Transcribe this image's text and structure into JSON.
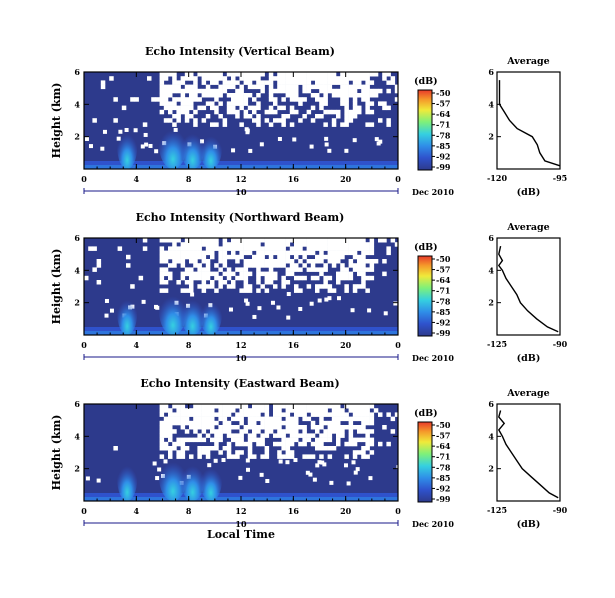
{
  "chart_data": [
    {
      "type": "heatmap",
      "title": "Echo Intensity (Vertical Beam)",
      "ylabel": "Height (km)",
      "y_ticks": [
        "2",
        "4",
        "6"
      ],
      "ylim": [
        0,
        6
      ],
      "x_ticks": [
        "0",
        "4",
        "8",
        "12",
        "16",
        "20",
        "0"
      ],
      "xlim": [
        0,
        24
      ],
      "x_xaxis_xlabel": "",
      "date_day": "10",
      "date_label": "Dec 2010",
      "colorbar": {
        "unit": "(dB)",
        "ticks": [
          "-50",
          "-57",
          "-64",
          "-71",
          "-78",
          "-85",
          "-92",
          "-99"
        ]
      },
      "average": {
        "title": "Average",
        "xlabel": "(dB)",
        "x_ticks": [
          "-120",
          "-95"
        ],
        "xlim": [
          -120,
          -95
        ],
        "profile": [
          [
            0.2,
            -95
          ],
          [
            0.5,
            -101
          ],
          [
            1.0,
            -103
          ],
          [
            1.5,
            -104
          ],
          [
            2.0,
            -106
          ],
          [
            2.5,
            -112
          ],
          [
            3.0,
            -115
          ],
          [
            3.5,
            -117
          ],
          [
            4.0,
            -119
          ],
          [
            4.5,
            -119
          ],
          [
            5.0,
            -119
          ],
          [
            5.5,
            -119
          ]
        ]
      }
    },
    {
      "type": "heatmap",
      "title": "Echo Intensity (Northward Beam)",
      "ylabel": "Height (km)",
      "y_ticks": [
        "2",
        "4",
        "6"
      ],
      "ylim": [
        0,
        6
      ],
      "x_ticks": [
        "0",
        "4",
        "8",
        "12",
        "16",
        "20",
        "0"
      ],
      "xlim": [
        0,
        24
      ],
      "date_day": "10",
      "date_label": "Dec 2010",
      "colorbar": {
        "unit": "(dB)",
        "ticks": [
          "-50",
          "-57",
          "-64",
          "-71",
          "-78",
          "-85",
          "-92",
          "-99"
        ]
      },
      "average": {
        "title": "Average",
        "xlabel": "(dB)",
        "x_ticks": [
          "-125",
          "-90"
        ],
        "xlim": [
          -125,
          -90
        ],
        "profile": [
          [
            0.2,
            -91
          ],
          [
            0.5,
            -97
          ],
          [
            1.0,
            -103
          ],
          [
            1.5,
            -108
          ],
          [
            2.0,
            -112
          ],
          [
            2.5,
            -114
          ],
          [
            3.0,
            -117
          ],
          [
            3.5,
            -120
          ],
          [
            4.0,
            -122
          ],
          [
            4.3,
            -124
          ],
          [
            4.6,
            -122
          ],
          [
            5.0,
            -124
          ],
          [
            5.5,
            -123
          ]
        ]
      }
    },
    {
      "type": "heatmap",
      "title": "Echo Intensity (Eastward Beam)",
      "ylabel": "Height (km)",
      "y_ticks": [
        "2",
        "4",
        "6"
      ],
      "ylim": [
        0,
        6
      ],
      "x_ticks": [
        "0",
        "4",
        "8",
        "12",
        "16",
        "20",
        "0"
      ],
      "xlim": [
        0,
        24
      ],
      "xlabel": "Local Time",
      "date_day": "10",
      "date_label": "Dec 2010",
      "colorbar": {
        "unit": "(dB)",
        "ticks": [
          "-50",
          "-57",
          "-64",
          "-71",
          "-78",
          "-85",
          "-92",
          "-99"
        ]
      },
      "average": {
        "title": "Average",
        "xlabel": "(dB)",
        "x_ticks": [
          "-125",
          "-90"
        ],
        "xlim": [
          -125,
          -90
        ],
        "profile": [
          [
            0.2,
            -91
          ],
          [
            0.5,
            -96
          ],
          [
            1.0,
            -101
          ],
          [
            1.5,
            -106
          ],
          [
            2.0,
            -111
          ],
          [
            2.5,
            -114
          ],
          [
            3.0,
            -117
          ],
          [
            3.5,
            -120
          ],
          [
            4.0,
            -122
          ],
          [
            4.4,
            -124
          ],
          [
            4.8,
            -121
          ],
          [
            5.2,
            -124
          ],
          [
            5.6,
            -123
          ]
        ]
      }
    }
  ],
  "colors": {
    "background": "#2d3a8c",
    "colorbar": [
      "#2d3a8c",
      "#2f52cc",
      "#2f8ee8",
      "#35d0e0",
      "#7ef07a",
      "#f0ea3a",
      "#f59a2a",
      "#e83a2a"
    ]
  }
}
